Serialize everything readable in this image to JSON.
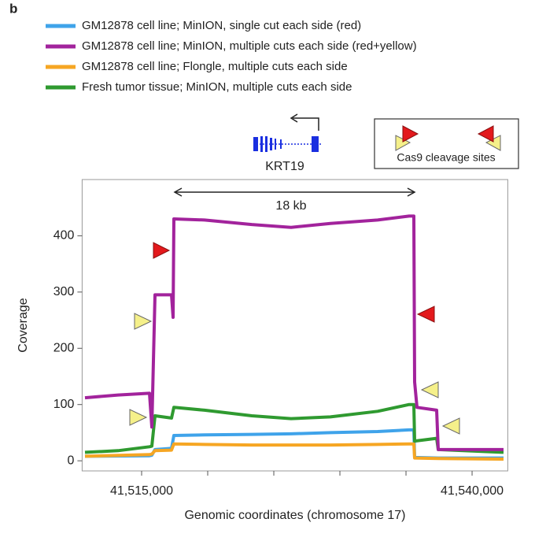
{
  "chart_data": {
    "type": "line",
    "panel_label": "b",
    "xlabel": "Genomic coordinates (chromosome 17)",
    "ylabel": "Coverage",
    "xlim": [
      41510500,
      41542700
    ],
    "ylim": [
      -18,
      500
    ],
    "yticks": [
      0,
      100,
      200,
      300,
      400
    ],
    "xticks": [
      {
        "value": 41515000,
        "label": "41,515,000"
      },
      {
        "value": 41540000,
        "label": "41,540,000"
      }
    ],
    "xminorticks": [
      41520000,
      41525000,
      41530000,
      41535000
    ],
    "gene_label": "KRT19",
    "span_label": "18 kb",
    "cleavage_legend": "Cas9 cleavage sites",
    "series": [
      {
        "name": "GM12878 cell line; MinION, single cut each side (red)",
        "color": "#3fa3ea",
        "x": [
          41510714,
          41515595,
          41515774,
          41516012,
          41517262,
          41517440,
          41519762,
          41523333,
          41526310,
          41529286,
          41532857,
          41535238,
          41535595,
          41535655,
          41537440,
          41542381
        ],
        "values": [
          8,
          9,
          10,
          20,
          22,
          45,
          46,
          47,
          48,
          50,
          52,
          55,
          55,
          6,
          5,
          5
        ]
      },
      {
        "name": "GM12878 cell line; MinION, multiple cuts each side (red+yellow)",
        "color": "#a2239c",
        "x": [
          41510714,
          41513214,
          41515595,
          41515774,
          41516012,
          41517262,
          41517381,
          41517440,
          41519762,
          41523333,
          41526310,
          41529286,
          41532857,
          41535238,
          41535595,
          41535655,
          41535833,
          41537321,
          41537440,
          41542381
        ],
        "values": [
          112,
          117,
          120,
          60,
          295,
          295,
          255,
          430,
          428,
          420,
          415,
          422,
          428,
          435,
          435,
          140,
          95,
          90,
          20,
          20
        ]
      },
      {
        "name": "GM12878 cell line; Flongle, multiple cuts each side",
        "color": "#f6a623",
        "x": [
          41510714,
          41515595,
          41515774,
          41516012,
          41517262,
          41517440,
          41519762,
          41523333,
          41526310,
          41529286,
          41532857,
          41535238,
          41535595,
          41535655,
          41537440,
          41542381
        ],
        "values": [
          8,
          11,
          12,
          18,
          19,
          30,
          29,
          28,
          28,
          28,
          29,
          30,
          30,
          5,
          4,
          3
        ]
      },
      {
        "name": "Fresh tumor tissue; MinION, multiple cuts each side",
        "color": "#2f9a30",
        "x": [
          41510714,
          41513214,
          41515595,
          41515774,
          41516012,
          41517262,
          41517440,
          41519762,
          41523333,
          41526310,
          41529286,
          41532857,
          41535238,
          41535595,
          41535655,
          41537321,
          41537440,
          41542381
        ],
        "values": [
          15,
          18,
          25,
          26,
          80,
          76,
          95,
          90,
          80,
          75,
          78,
          88,
          100,
          100,
          35,
          40,
          20,
          15
        ]
      }
    ]
  }
}
